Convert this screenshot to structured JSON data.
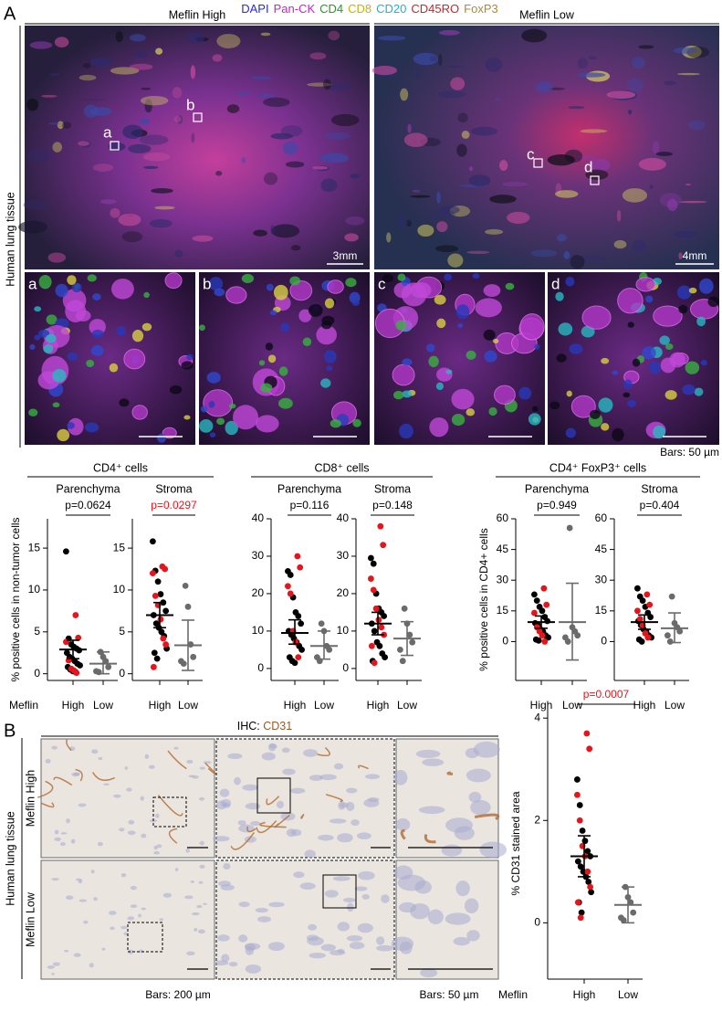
{
  "figure": {
    "panel_a": {
      "label": "A",
      "stains": [
        {
          "text": "DAPI",
          "color": "#2b2bd6"
        },
        {
          "text": "Pan-CK",
          "color": "#c426c4"
        },
        {
          "text": "CD4",
          "color": "#1e9e1e"
        },
        {
          "text": "CD8",
          "color": "#c8b400"
        },
        {
          "text": "CD20",
          "color": "#1fb3c9"
        },
        {
          "text": "CD45RO",
          "color": "#c62828"
        },
        {
          "text": "FoxP3",
          "color": "#b08a2e"
        }
      ],
      "columns": [
        "Meflin High",
        "Meflin Low"
      ],
      "side_label": "Human lung tissue",
      "scale_labels": [
        "3mm",
        "4mm"
      ],
      "insets": [
        "a",
        "b",
        "c",
        "d"
      ],
      "inset_bar_label": "Bars: 50 µm",
      "groups": [
        "CD4⁺ cells",
        "CD8⁺ cells",
        "CD4⁺ FoxP3⁺ cells"
      ],
      "x_group_label": "Meflin"
    },
    "panel_b": {
      "label": "B",
      "title_prefix": "IHC: ",
      "title_marker": "CD31",
      "title_marker_color": "#9a5a2a",
      "rows": [
        "Meflin High",
        "Meflin Low"
      ],
      "side_label": "Human lung tissue",
      "bar_labels": [
        "Bars: 200 µm",
        "Bars: 50 µm"
      ],
      "x_group_label": "Meflin"
    }
  },
  "chart_data": [
    {
      "type": "strip",
      "title": "Parenchyma",
      "annotation": "p=0.0624",
      "annotation_color": "#000000",
      "ylabel": "% positive cells in non-tumor cells",
      "categories": [
        "High",
        "Low"
      ],
      "ylim": [
        -0.8,
        18.5
      ],
      "yticks": [
        0,
        5,
        10,
        15
      ],
      "series": [
        {
          "category": 0,
          "color": "#000000",
          "values": [
            14.6,
            4.2,
            3.5,
            3.2,
            3.0,
            2.8,
            2.5,
            2.0,
            1.8,
            1.5,
            1.2,
            1.0,
            0.8,
            0.5,
            0.3,
            0.2
          ]
        },
        {
          "category": 0,
          "color": "#e8141b",
          "values": [
            7.0,
            4.3,
            3.8,
            1.6,
            0.6,
            0.4,
            0.1
          ]
        },
        {
          "category": 1,
          "color": "#6b6b6b",
          "values": [
            2.6,
            2.0,
            1.5,
            0.8,
            0.3,
            0.2
          ]
        }
      ],
      "summary": [
        {
          "mean": 2.9,
          "lower": 1.8,
          "upper": 4.0,
          "color": "#000000"
        },
        {
          "mean": 1.2,
          "lower": 0,
          "upper": 2.6,
          "color": "#6b6b6b"
        }
      ]
    },
    {
      "type": "strip",
      "title": "Stroma",
      "annotation": "p=0.0297",
      "annotation_color": "#e8141b",
      "categories": [
        "High",
        "Low"
      ],
      "ylim": [
        -0.8,
        18.5
      ],
      "yticks": [
        0,
        5,
        10,
        15
      ],
      "series": [
        {
          "category": 0,
          "color": "#000000",
          "values": [
            15.8,
            12.3,
            11.0,
            9.5,
            8.5,
            7.5,
            7.0,
            6.0,
            5.5,
            5.0,
            4.5,
            3.0,
            2.5,
            1.8
          ]
        },
        {
          "category": 0,
          "color": "#e8141b",
          "values": [
            12.8,
            12.5,
            12.0,
            9.3,
            8.2,
            6.5,
            4.2,
            3.5,
            0.8
          ]
        },
        {
          "category": 1,
          "color": "#6b6b6b",
          "values": [
            10.5,
            8.0,
            3.5,
            2.0,
            1.5,
            1.2
          ]
        }
      ],
      "summary": [
        {
          "mean": 7.0,
          "lower": 5.5,
          "upper": 8.5,
          "color": "#000000"
        },
        {
          "mean": 3.4,
          "lower": 0.4,
          "upper": 6.4,
          "color": "#6b6b6b"
        }
      ]
    },
    {
      "type": "strip",
      "title": "Parenchyma",
      "annotation": "p=0.116",
      "annotation_color": "#000000",
      "categories": [
        "High",
        "Low"
      ],
      "ylim": [
        -3.2,
        40
      ],
      "yticks": [
        0,
        10,
        20,
        30,
        40
      ],
      "series": [
        {
          "category": 0,
          "color": "#000000",
          "values": [
            26,
            25,
            19,
            15,
            14,
            12,
            10,
            9,
            8,
            7,
            6,
            5,
            3,
            2,
            1.5
          ]
        },
        {
          "category": 0,
          "color": "#e8141b",
          "values": [
            30,
            27,
            22,
            20,
            10,
            7,
            3
          ]
        },
        {
          "category": 1,
          "color": "#6b6b6b",
          "values": [
            12,
            10,
            6,
            5,
            3,
            2
          ]
        }
      ],
      "summary": [
        {
          "mean": 9.5,
          "lower": 6.5,
          "upper": 13,
          "color": "#000000"
        },
        {
          "mean": 6,
          "lower": 2.5,
          "upper": 10,
          "color": "#6b6b6b"
        }
      ]
    },
    {
      "type": "strip",
      "title": "Stroma",
      "annotation": "p=0.148",
      "annotation_color": "#000000",
      "categories": [
        "High",
        "Low"
      ],
      "ylim": [
        -3.2,
        40
      ],
      "yticks": [
        0,
        10,
        20,
        30,
        40
      ],
      "series": [
        {
          "category": 0,
          "color": "#000000",
          "values": [
            29.5,
            28,
            20,
            16,
            15,
            14,
            12,
            10,
            7,
            6,
            4,
            3,
            2
          ]
        },
        {
          "category": 0,
          "color": "#e8141b",
          "values": [
            38,
            33,
            24,
            21,
            16,
            13,
            11,
            9,
            6,
            1.5
          ]
        },
        {
          "category": 1,
          "color": "#6b6b6b",
          "values": [
            16,
            12,
            9,
            7,
            5,
            2
          ]
        }
      ],
      "summary": [
        {
          "mean": 12,
          "lower": 9,
          "upper": 15,
          "color": "#000000"
        },
        {
          "mean": 8,
          "lower": 3.5,
          "upper": 12.5,
          "color": "#6b6b6b"
        }
      ]
    },
    {
      "type": "strip",
      "title": "Parenchyma",
      "annotation": "p=0.949",
      "annotation_color": "#000000",
      "ylabel": "% positive cells in CD4+ cells",
      "categories": [
        "High",
        "Low"
      ],
      "ylim": [
        -19,
        60
      ],
      "yticks": [
        0,
        15,
        30,
        45,
        60
      ],
      "series": [
        {
          "category": 0,
          "color": "#000000",
          "values": [
            23,
            20,
            17,
            15,
            12,
            10,
            9,
            8,
            6,
            5,
            3,
            2,
            1,
            0.5
          ]
        },
        {
          "category": 0,
          "color": "#e8141b",
          "values": [
            26,
            18,
            14,
            7,
            5,
            3,
            0
          ]
        },
        {
          "category": 1,
          "color": "#6b6b6b",
          "values": [
            55.5,
            7,
            5,
            3,
            2,
            0
          ]
        }
      ],
      "summary": [
        {
          "mean": 9.5,
          "lower": 6.5,
          "upper": 12.5,
          "color": "#000000"
        },
        {
          "mean": 9.5,
          "lower": -9,
          "upper": 28.5,
          "color": "#6b6b6b"
        }
      ]
    },
    {
      "type": "strip",
      "title": "Stroma",
      "annotation": "p=0.404",
      "annotation_color": "#000000",
      "categories": [
        "High",
        "Low"
      ],
      "ylim": [
        -19,
        60
      ],
      "yticks": [
        0,
        15,
        30,
        45,
        60
      ],
      "series": [
        {
          "category": 0,
          "color": "#000000",
          "values": [
            26,
            22,
            20,
            17,
            14,
            12,
            10,
            8,
            6,
            5,
            3,
            2,
            1,
            0
          ]
        },
        {
          "category": 0,
          "color": "#e8141b",
          "values": [
            23,
            18,
            15,
            11,
            8,
            4,
            2
          ]
        },
        {
          "category": 1,
          "color": "#6b6b6b",
          "values": [
            22,
            9,
            7,
            5,
            3,
            0
          ]
        }
      ],
      "summary": [
        {
          "mean": 9.5,
          "lower": 6,
          "upper": 13,
          "color": "#000000"
        },
        {
          "mean": 6.5,
          "lower": -0.5,
          "upper": 14,
          "color": "#6b6b6b"
        }
      ]
    },
    {
      "type": "strip",
      "annotation": "p=0.0007",
      "annotation_color": "#e8141b",
      "ylabel": "% CD31 stained area",
      "categories": [
        "High",
        "Low"
      ],
      "ylim": [
        -1.1,
        4.2
      ],
      "yticks": [
        0,
        2,
        4
      ],
      "series": [
        {
          "category": 0,
          "color": "#000000",
          "values": [
            2.8,
            2.3,
            1.8,
            1.6,
            1.4,
            1.3,
            1.2,
            1.1,
            1.0,
            0.9,
            0.8,
            0.6,
            0.4,
            0.2
          ]
        },
        {
          "category": 0,
          "color": "#e8141b",
          "values": [
            3.7,
            3.4,
            2.5,
            2.0,
            1.5,
            1.3,
            1.0,
            0.7,
            0.4,
            0.1
          ]
        },
        {
          "category": 1,
          "color": "#6b6b6b",
          "values": [
            0.7,
            0.5,
            0.4,
            0.2,
            0.1,
            0.05
          ]
        }
      ],
      "summary": [
        {
          "mean": 1.3,
          "lower": 0.9,
          "upper": 1.7,
          "color": "#000000"
        },
        {
          "mean": 0.35,
          "lower": 0,
          "upper": 0.7,
          "color": "#6b6b6b"
        }
      ]
    }
  ]
}
